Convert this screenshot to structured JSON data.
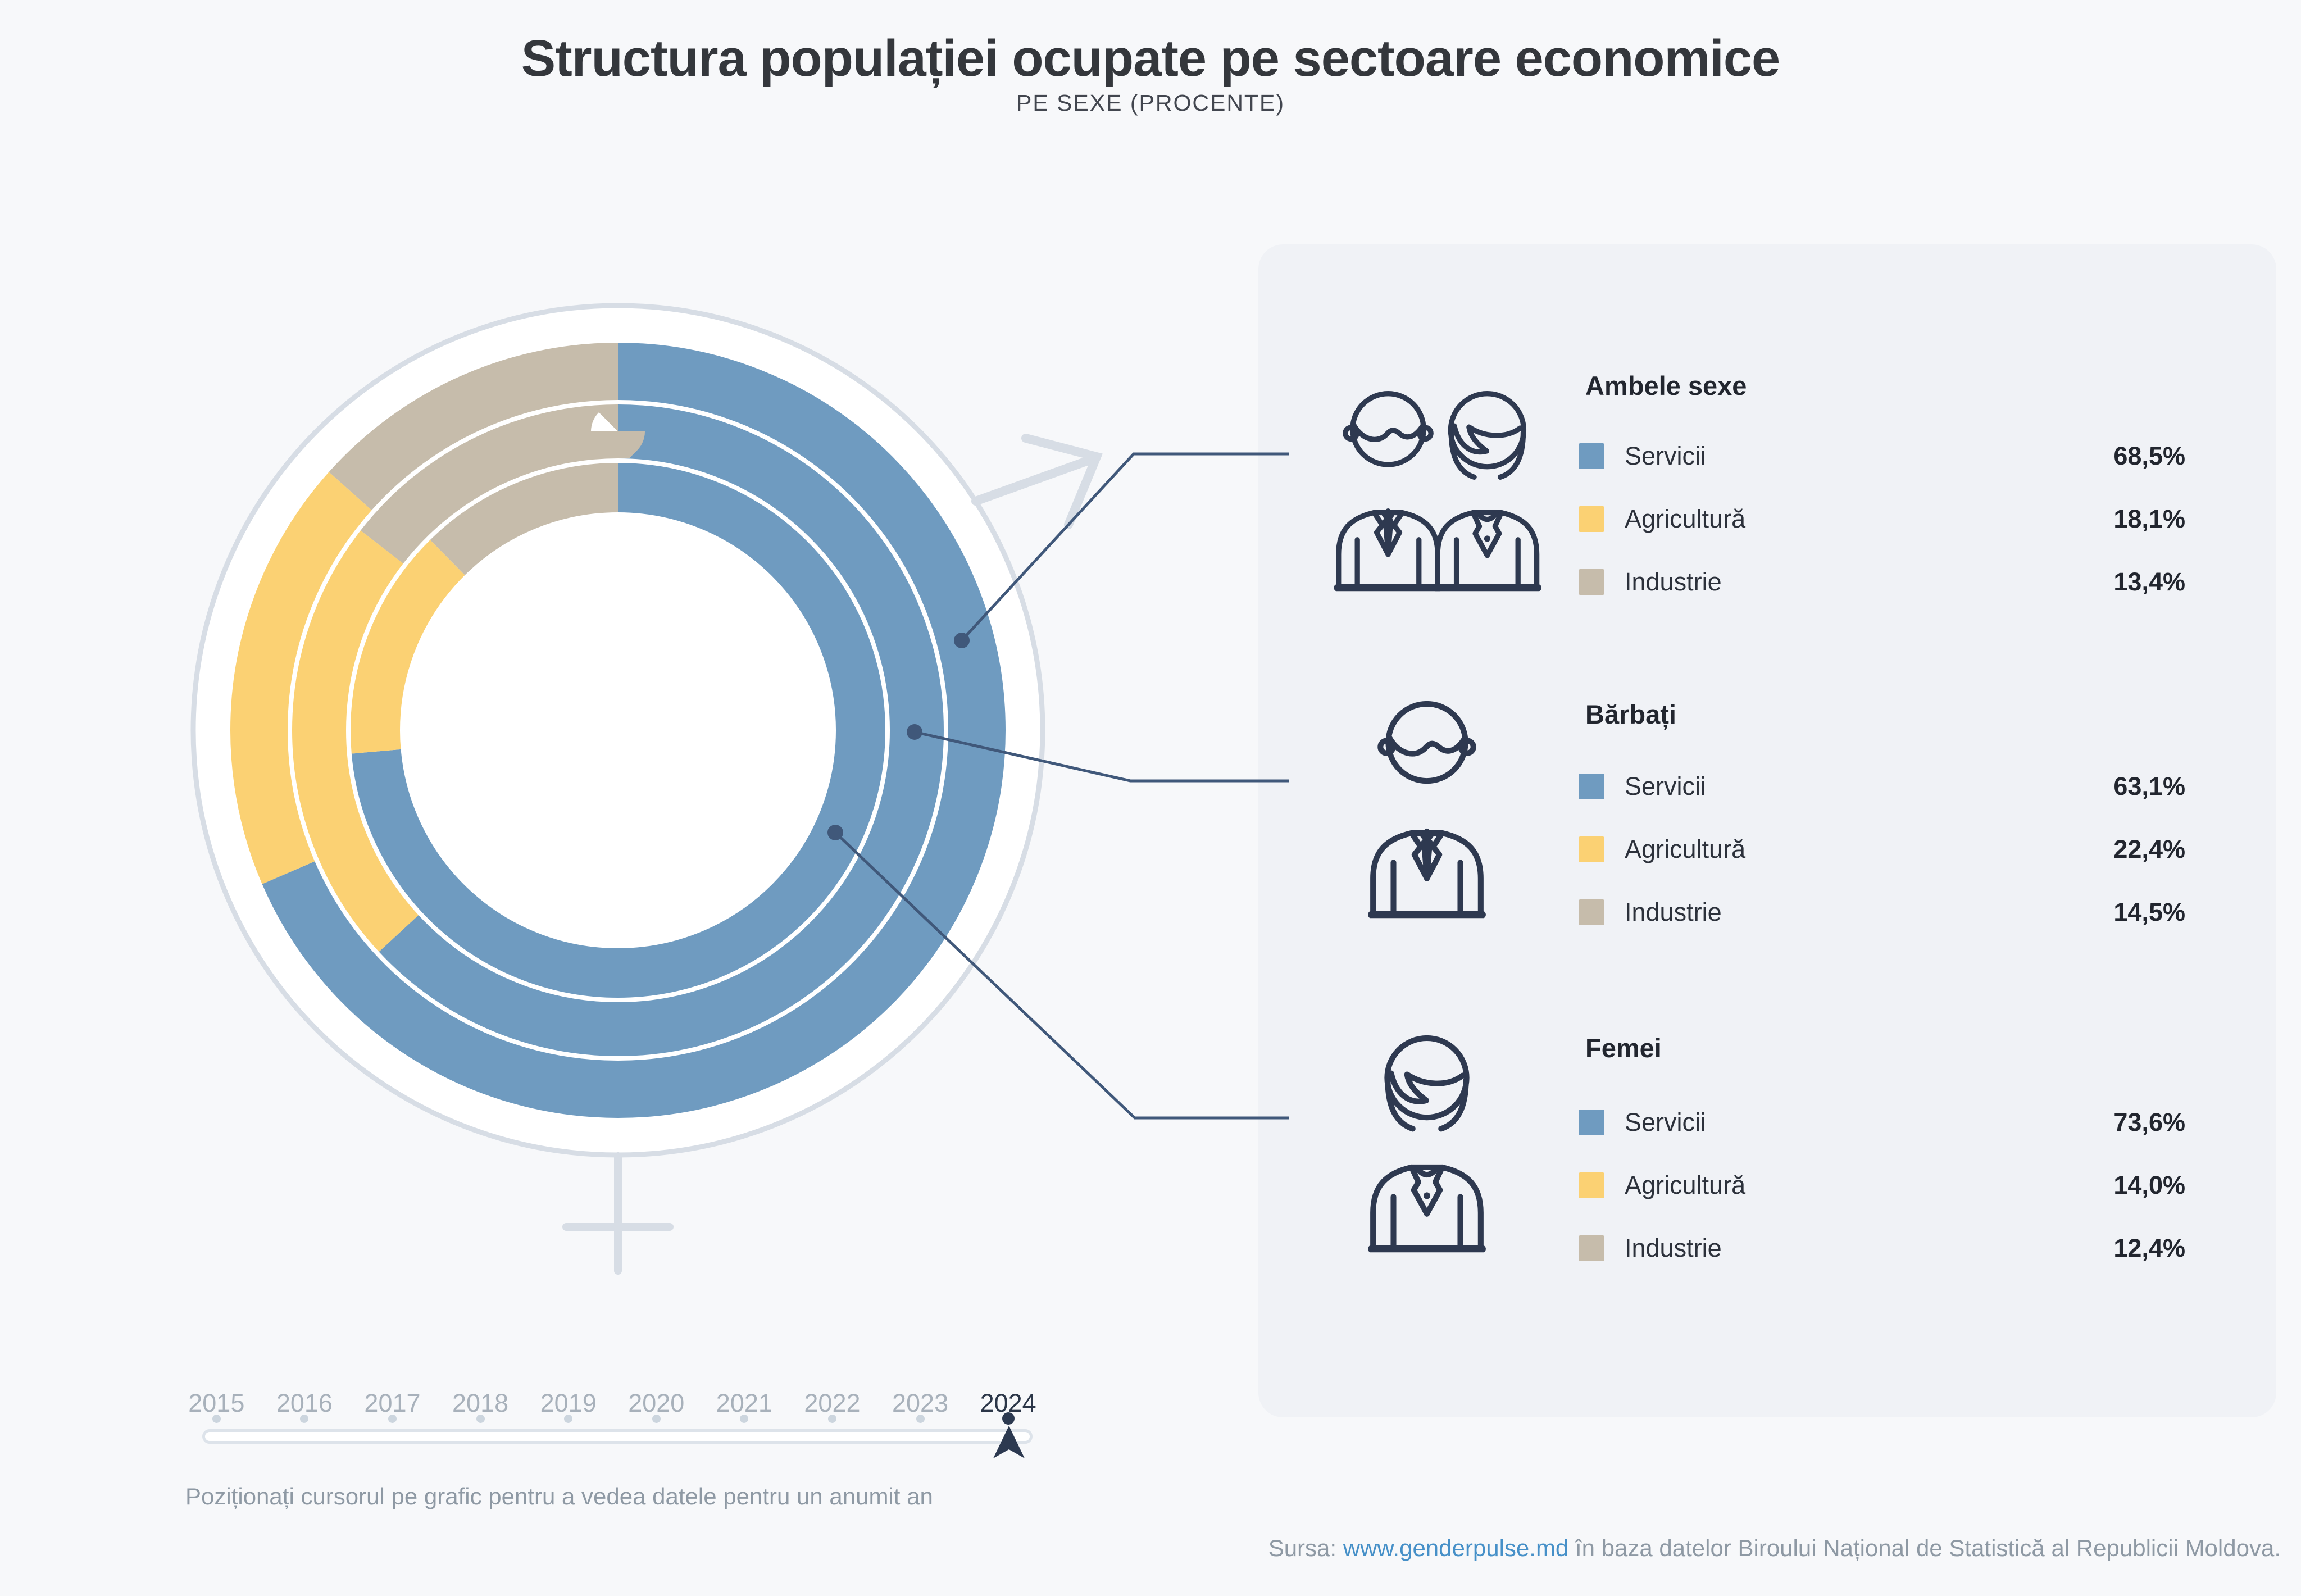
{
  "header": {
    "title": "Structura populației ocupate pe sectoare economice",
    "subtitle": "PE SEXE (PROCENTE)"
  },
  "chart_data": {
    "type": "pie",
    "subtype": "multi-ring-donut",
    "unit": "percent",
    "year_shown": "2024",
    "categories": [
      "Servicii",
      "Agricultură",
      "Industrie"
    ],
    "colors": {
      "Servicii": "#6F9BC0",
      "Agricultură": "#FBD173",
      "Industrie": "#C6BCAB"
    },
    "series": [
      {
        "name": "Ambele sexe",
        "ring": "outer",
        "values": [
          68.5,
          18.1,
          13.4
        ]
      },
      {
        "name": "Bărbați",
        "ring": "middle",
        "values": [
          63.1,
          22.4,
          14.5
        ]
      },
      {
        "name": "Femei",
        "ring": "inner",
        "values": [
          73.6,
          14.0,
          12.4
        ]
      }
    ],
    "start_angle": "12 o'clock, clockwise",
    "legend_position": "right"
  },
  "legend": {
    "groups": [
      {
        "title": "Ambele sexe",
        "icon": "couple-icon",
        "rows": [
          {
            "label": "Servicii",
            "value": "68,5%",
            "color": "#6F9BC0"
          },
          {
            "label": "Agricultură",
            "value": "18,1%",
            "color": "#FBD173"
          },
          {
            "label": "Industrie",
            "value": "13,4%",
            "color": "#C6BCAB"
          }
        ]
      },
      {
        "title": "Bărbați",
        "icon": "man-icon",
        "rows": [
          {
            "label": "Servicii",
            "value": "63,1%",
            "color": "#6F9BC0"
          },
          {
            "label": "Agricultură",
            "value": "22,4%",
            "color": "#FBD173"
          },
          {
            "label": "Industrie",
            "value": "14,5%",
            "color": "#C6BCAB"
          }
        ]
      },
      {
        "title": "Femei",
        "icon": "woman-icon",
        "rows": [
          {
            "label": "Servicii",
            "value": "73,6%",
            "color": "#6F9BC0"
          },
          {
            "label": "Agricultură",
            "value": "14,0%",
            "color": "#FBD173"
          },
          {
            "label": "Industrie",
            "value": "12,4%",
            "color": "#C6BCAB"
          }
        ]
      }
    ]
  },
  "timeline": {
    "years": [
      "2015",
      "2016",
      "2017",
      "2018",
      "2019",
      "2020",
      "2021",
      "2022",
      "2023",
      "2024"
    ],
    "selected": "2024",
    "caption": "Poziționați cursorul pe grafic pentru a vedea datele pentru un anumit an"
  },
  "source": {
    "prefix": "Sursa: ",
    "link": "www.genderpulse.md",
    "suffix": " în baza datelor Biroului Național de Statistică al Republicii Moldova."
  }
}
